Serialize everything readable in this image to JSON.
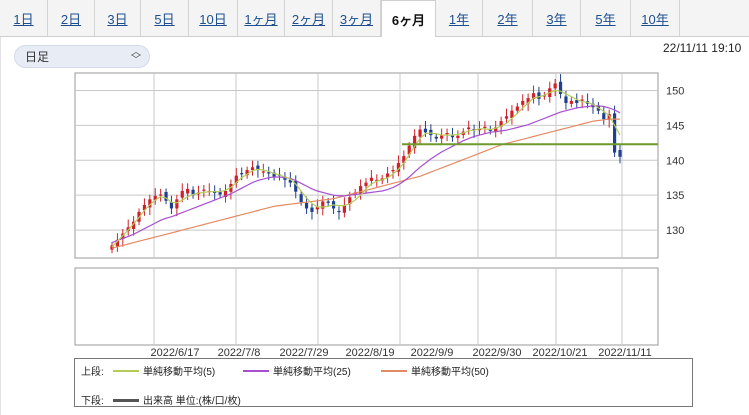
{
  "tabs": [
    {
      "label": "1日",
      "active": false
    },
    {
      "label": "2日",
      "active": false
    },
    {
      "label": "3日",
      "active": false
    },
    {
      "label": "5日",
      "active": false
    },
    {
      "label": "10日",
      "active": false
    },
    {
      "label": "1ヶ月",
      "active": false
    },
    {
      "label": "2ヶ月",
      "active": false
    },
    {
      "label": "3ヶ月",
      "active": false
    },
    {
      "label": "6ヶ月",
      "active": true
    },
    {
      "label": "1年",
      "active": false
    },
    {
      "label": "2年",
      "active": false
    },
    {
      "label": "3年",
      "active": false
    },
    {
      "label": "5年",
      "active": false
    },
    {
      "label": "10年",
      "active": false
    }
  ],
  "selector": {
    "value": "日足"
  },
  "timestamp": "22/11/11 19:10",
  "legend": {
    "upper_label": "上段:",
    "lower_label": "下段:",
    "ma5": "単純移動平均(5)",
    "ma25": "単純移動平均(25)",
    "ma50": "単純移動平均(50)",
    "volume": "出来高 単位:(株/口/枚)"
  },
  "colors": {
    "up": "#d0202a",
    "down": "#1f3f8f",
    "ma5": "#b5cc5a",
    "ma25": "#a64fd0",
    "ma50": "#e48a63",
    "hline": "#6f9a2a",
    "grid": "#c8c8c8"
  },
  "chart_data": {
    "type": "candlestick",
    "x_tick_labels": [
      "2022/6/17",
      "2022/7/8",
      "2022/7/29",
      "2022/8/19",
      "2022/9/9",
      "2022/9/30",
      "2022/10/21",
      "2022/11/11"
    ],
    "y_ticks": [
      130,
      135,
      140,
      145,
      150
    ],
    "ylim": [
      126,
      152.5
    ],
    "horizontal_line": 142.3,
    "series": [
      {
        "name": "単純移動平均(5)",
        "color": "#b5cc5a"
      },
      {
        "name": "単純移動平均(25)",
        "color": "#a64fd0"
      },
      {
        "name": "単純移動平均(50)",
        "color": "#e48a63"
      }
    ],
    "close": [
      127.8,
      128.6,
      129.5,
      130.4,
      131.2,
      132.6,
      133.6,
      134.4,
      134.9,
      135.1,
      134.2,
      133.1,
      134.4,
      135.6,
      135.9,
      135.0,
      135.4,
      135.8,
      135.6,
      135.3,
      135.1,
      135.6,
      136.6,
      137.8,
      138.1,
      138.6,
      139.0,
      138.6,
      138.4,
      138.1,
      137.6,
      137.9,
      137.2,
      136.8,
      135.5,
      134.0,
      133.1,
      132.6,
      133.3,
      134.1,
      133.9,
      133.1,
      132.6,
      133.6,
      134.7,
      135.4,
      136.3,
      136.8,
      137.5,
      137.2,
      137.4,
      138.1,
      138.6,
      139.6,
      140.6,
      142.1,
      143.5,
      144.4,
      144.0,
      143.6,
      143.1,
      143.6,
      143.9,
      143.3,
      143.5,
      144.1,
      144.7,
      144.3,
      144.5,
      144.8,
      144.2,
      144.7,
      145.6,
      146.3,
      147.1,
      147.7,
      148.5,
      148.9,
      149.6,
      148.8,
      149.3,
      150.3,
      151.0,
      149.5,
      148.2,
      148.5,
      148.2,
      148.7,
      148.1,
      147.6,
      147.1,
      145.9,
      146.6,
      141.1,
      140.5
    ],
    "ma5": [
      127.6,
      128.4,
      129.2,
      130.0,
      130.9,
      131.8,
      132.8,
      133.6,
      134.3,
      134.8,
      134.6,
      134.0,
      133.9,
      134.3,
      134.8,
      135.1,
      135.3,
      135.4,
      135.5,
      135.5,
      135.5,
      135.7,
      136.1,
      136.8,
      137.5,
      138.0,
      138.5,
      138.7,
      138.6,
      138.4,
      138.1,
      137.9,
      137.6,
      137.3,
      136.6,
      135.6,
      134.6,
      133.8,
      133.3,
      133.3,
      133.4,
      133.6,
      133.5,
      133.5,
      133.8,
      134.3,
      135.0,
      135.9,
      136.6,
      137.0,
      137.2,
      137.5,
      138.0,
      138.7,
      139.6,
      140.8,
      142.0,
      143.1,
      143.8,
      143.9,
      143.8,
      143.6,
      143.6,
      143.6,
      143.7,
      143.9,
      144.2,
      144.3,
      144.5,
      144.5,
      144.4,
      144.6,
      144.9,
      145.3,
      146.0,
      146.7,
      147.5,
      148.2,
      148.9,
      149.1,
      149.3,
      149.7,
      150.0,
      149.9,
      149.5,
      149.1,
      148.7,
      148.4,
      148.3,
      148.0,
      147.5,
      147.0,
      146.4,
      145.0,
      143.6
    ],
    "ma25": [
      128.2,
      128.5,
      128.8,
      129.1,
      129.4,
      129.8,
      130.2,
      130.6,
      131.0,
      131.4,
      131.7,
      131.9,
      132.2,
      132.5,
      132.8,
      133.1,
      133.4,
      133.7,
      134.0,
      134.3,
      134.6,
      134.9,
      135.2,
      135.6,
      136.0,
      136.4,
      136.8,
      137.1,
      137.3,
      137.5,
      137.6,
      137.6,
      137.5,
      137.4,
      137.1,
      136.7,
      136.3,
      135.9,
      135.6,
      135.4,
      135.2,
      135.0,
      134.9,
      134.9,
      135.0,
      135.1,
      135.2,
      135.3,
      135.4,
      135.5,
      135.6,
      135.8,
      136.1,
      136.5,
      137.0,
      137.6,
      138.3,
      139.0,
      139.6,
      140.2,
      140.7,
      141.2,
      141.6,
      142.0,
      142.4,
      142.8,
      143.1,
      143.4,
      143.6,
      143.8,
      144.0,
      144.1,
      144.2,
      144.3,
      144.5,
      144.7,
      144.9,
      145.1,
      145.4,
      145.7,
      146.0,
      146.3,
      146.6,
      146.9,
      147.1,
      147.3,
      147.5,
      147.6,
      147.7,
      147.8,
      147.8,
      147.7,
      147.5,
      147.2,
      146.8
    ],
    "ma50": [
      127.4,
      127.6,
      127.8,
      128.0,
      128.2,
      128.4,
      128.6,
      128.8,
      129.0,
      129.2,
      129.4,
      129.6,
      129.8,
      130.0,
      130.2,
      130.4,
      130.6,
      130.8,
      131.0,
      131.2,
      131.4,
      131.6,
      131.8,
      132.0,
      132.2,
      132.4,
      132.6,
      132.8,
      133.0,
      133.2,
      133.4,
      133.5,
      133.6,
      133.7,
      133.8,
      133.9,
      134.0,
      134.1,
      134.2,
      134.3,
      134.4,
      134.5,
      134.7,
      134.9,
      135.1,
      135.3,
      135.5,
      135.7,
      135.9,
      136.1,
      136.3,
      136.5,
      136.7,
      136.9,
      137.1,
      137.3,
      137.5,
      137.7,
      138.0,
      138.3,
      138.6,
      138.9,
      139.2,
      139.5,
      139.8,
      140.1,
      140.4,
      140.7,
      141.0,
      141.3,
      141.6,
      141.9,
      142.2,
      142.4,
      142.6,
      142.8,
      143.0,
      143.2,
      143.4,
      143.6,
      143.8,
      144.0,
      144.2,
      144.4,
      144.6,
      144.8,
      145.0,
      145.2,
      145.4,
      145.6,
      145.7,
      145.8,
      145.9,
      145.9,
      145.9
    ]
  }
}
